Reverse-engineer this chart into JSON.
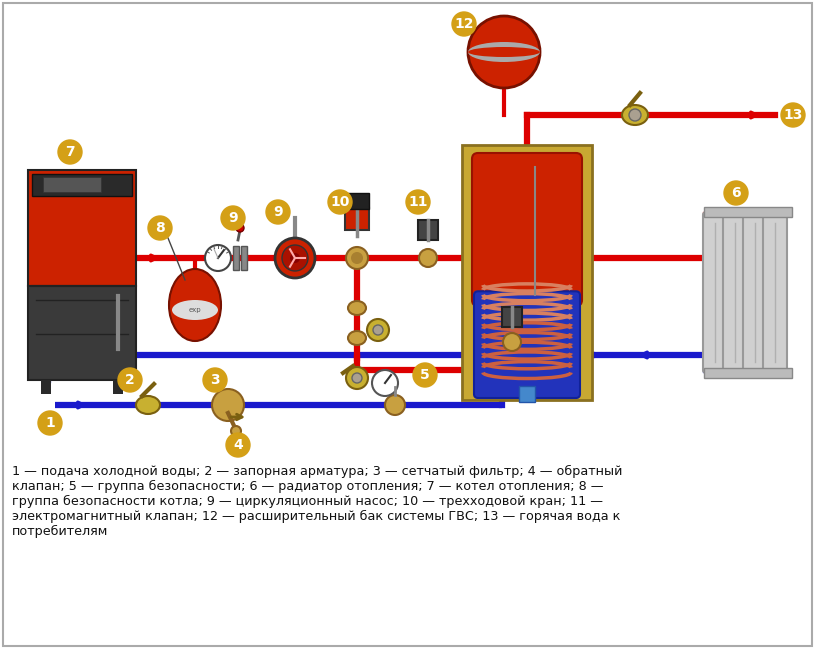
{
  "bg_color": "#ffffff",
  "pipe_red": "#dd0000",
  "pipe_blue": "#1a1acc",
  "label_bg": "#d4a017",
  "caption_text": "1 — подача холодной воды; 2 — запорная арматура; 3 — сетчатый фильтр; 4 — обратный\nклапан; 5 — группа безопасности; 6 — радиатор отопления; 7 — котел отопления; 8 —\nгруппа безопасности котла; 9 — циркуляционный насос; 10 — трехходовой кран; 11 —\nэлектромагнитный клапан; 12 — расширительный бак системы ГВС; 13 — горячая вода к\nпотребителям"
}
